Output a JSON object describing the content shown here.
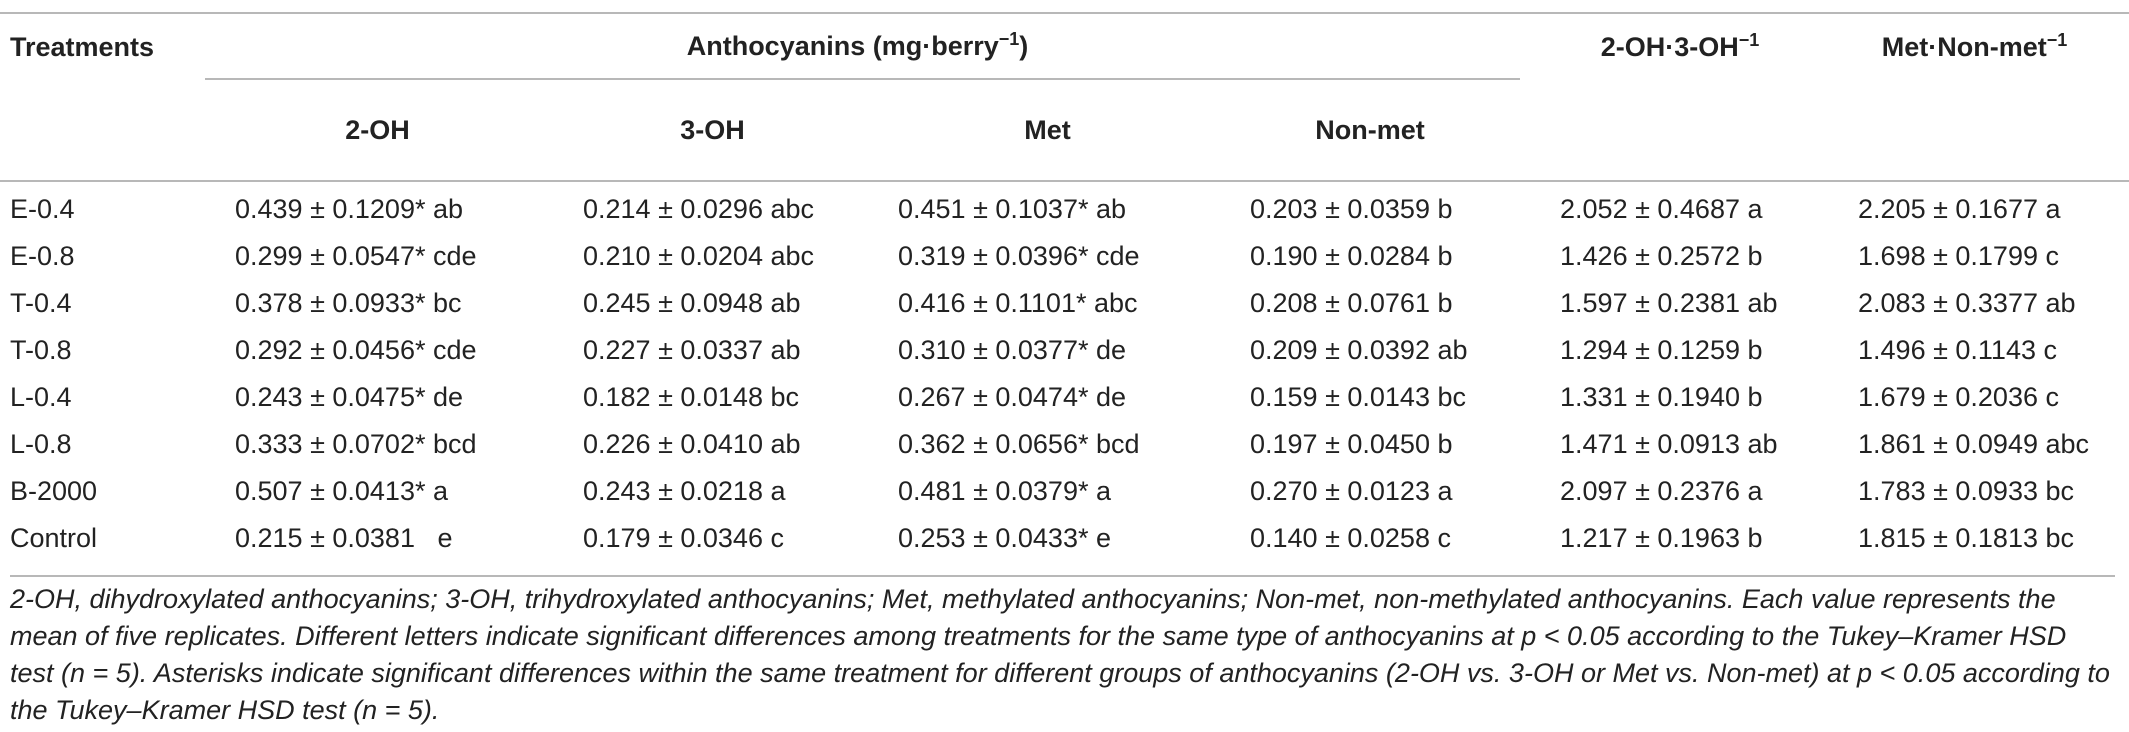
{
  "table": {
    "headers": {
      "treatments": "Treatments",
      "anthocyanins_group": "Anthocyanins (mg·berry",
      "anthocyanins_group_sup": "−1",
      "anthocyanins_group_close": ")",
      "ratio_2oh_3oh": "2-OH·3-OH",
      "ratio_2oh_3oh_sup": "−1",
      "ratio_met_nonmet": "Met·Non-met",
      "ratio_met_nonmet_sup": "−1",
      "sub": [
        "2-OH",
        "3-OH",
        "Met",
        "Non-met"
      ]
    },
    "rows": [
      {
        "treatment": "E-0.4",
        "oh2": "0.439 ± 0.1209* ab",
        "oh3": "0.214 ± 0.0296 abc",
        "met": "0.451 ± 0.1037* ab",
        "nonmet": "0.203 ± 0.0359 b",
        "r1": "2.052 ± 0.4687 a",
        "r2": "2.205 ± 0.1677 a"
      },
      {
        "treatment": "E-0.8",
        "oh2": "0.299 ± 0.0547* cde",
        "oh3": "0.210 ± 0.0204 abc",
        "met": "0.319 ± 0.0396* cde",
        "nonmet": "0.190 ± 0.0284 b",
        "r1": "1.426 ± 0.2572 b",
        "r2": "1.698 ± 0.1799 c"
      },
      {
        "treatment": "T-0.4",
        "oh2": "0.378 ± 0.0933* bc",
        "oh3": "0.245 ± 0.0948 ab",
        "met": "0.416 ± 0.1101* abc",
        "nonmet": "0.208 ± 0.0761 b",
        "r1": "1.597 ± 0.2381 ab",
        "r2": "2.083 ± 0.3377 ab"
      },
      {
        "treatment": "T-0.8",
        "oh2": "0.292 ± 0.0456* cde",
        "oh3": "0.227 ± 0.0337 ab",
        "met": "0.310 ± 0.0377* de",
        "nonmet": "0.209 ± 0.0392 ab",
        "r1": "1.294 ± 0.1259 b",
        "r2": "1.496 ± 0.1143 c"
      },
      {
        "treatment": "L-0.4",
        "oh2": "0.243 ± 0.0475* de",
        "oh3": "0.182 ± 0.0148 bc",
        "met": "0.267 ± 0.0474* de",
        "nonmet": "0.159 ± 0.0143 bc",
        "r1": "1.331 ± 0.1940 b",
        "r2": "1.679 ± 0.2036 c"
      },
      {
        "treatment": "L-0.8",
        "oh2": "0.333 ± 0.0702* bcd",
        "oh3": "0.226 ± 0.0410 ab",
        "met": "0.362 ± 0.0656* bcd",
        "nonmet": "0.197 ± 0.0450 b",
        "r1": "1.471 ± 0.0913 ab",
        "r2": "1.861 ± 0.0949 abc"
      },
      {
        "treatment": "B-2000",
        "oh2": "0.507 ± 0.0413* a",
        "oh3": "0.243 ± 0.0218 a",
        "met": "0.481 ± 0.0379* a",
        "nonmet": "0.270 ± 0.0123 a",
        "r1": "2.097 ± 0.2376 a",
        "r2": "1.783 ± 0.0933 bc"
      },
      {
        "treatment": "Control",
        "oh2": "0.215 ± 0.0381   e",
        "oh3": "0.179 ± 0.0346 c",
        "met": "0.253 ± 0.0433* e",
        "nonmet": "0.140 ± 0.0258 c",
        "r1": "1.217 ± 0.1963 b",
        "r2": "1.815 ± 0.1813 bc"
      }
    ]
  },
  "footnote": "2-OH, dihydroxylated anthocyanins; 3-OH, trihydroxylated anthocyanins; Met, methylated anthocyanins; Non-met, non-methylated anthocyanins. Each value represents the mean of five replicates. Different letters indicate significant differences among treatments for the same type of anthocyanins at p < 0.05 according to the Tukey–Kramer HSD test (n = 5). Asterisks indicate significant differences within the same treatment for different groups of anthocyanins (2-OH vs. 3-OH or Met vs. Non-met) at p < 0.05 according to the Tukey–Kramer HSD test (n = 5)."
}
